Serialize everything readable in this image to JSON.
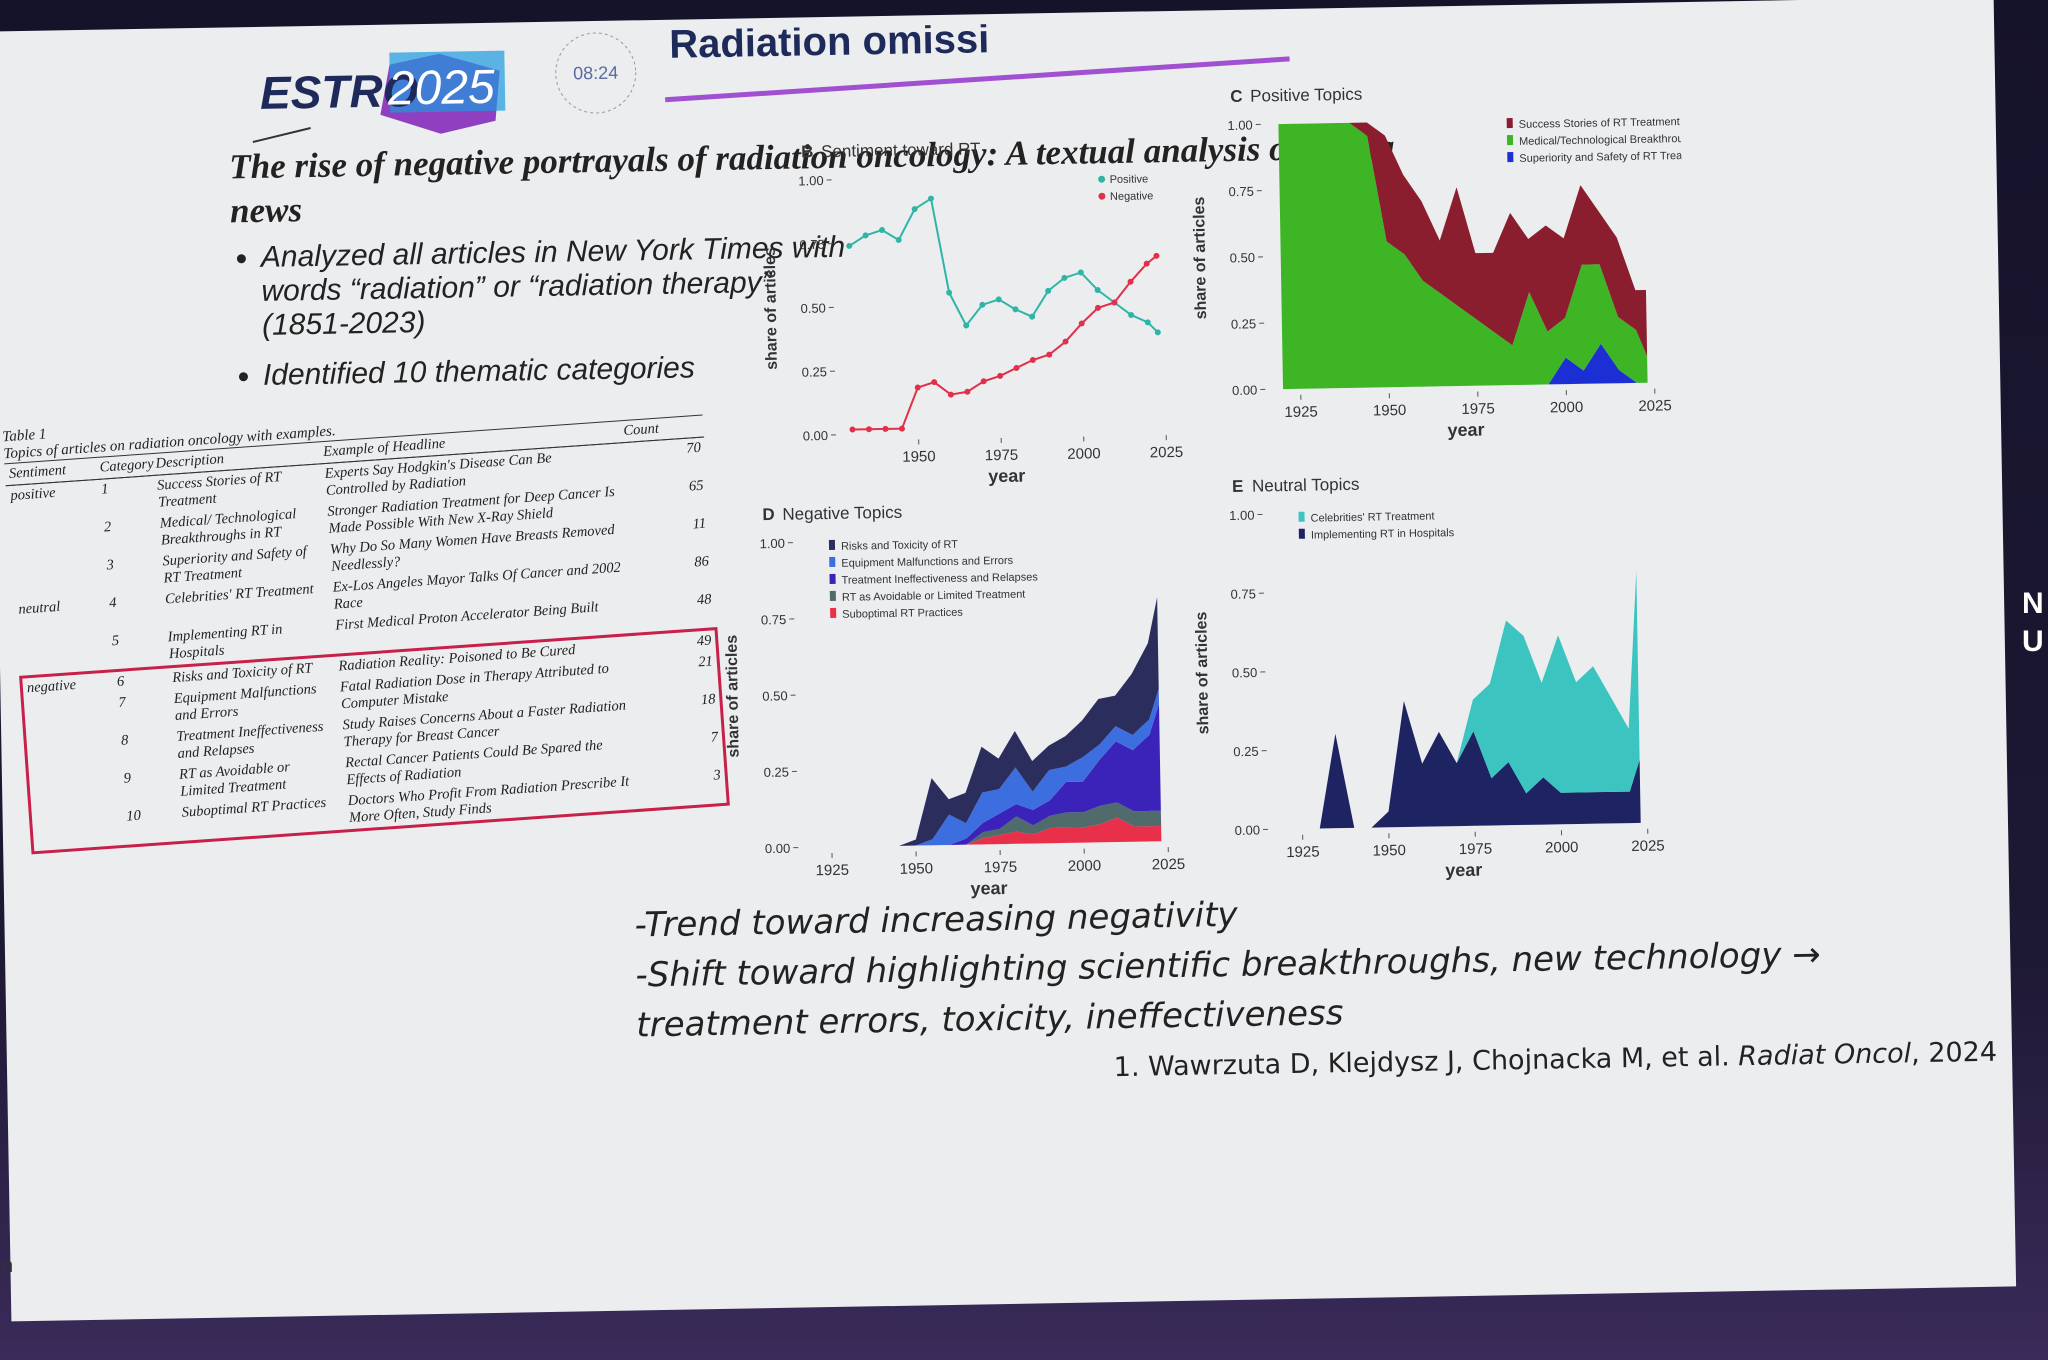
{
  "header": {
    "logo_left": "ESTRO",
    "logo_right": "2025",
    "time": "08:24",
    "title": "Radiation omissi"
  },
  "slide": {
    "title": "The rise of negative portrayals of radiation oncology: A textual analysis of media news",
    "bullets": [
      "Analyzed all articles in New York Times with words “radiation” or “radiation therapy” (1851-2023)",
      "Identified 10 thematic categories"
    ],
    "conclusions": [
      "-Trend toward increasing negativity",
      "-Shift toward highlighting scientific breakthroughs, new technology → treatment errors, toxicity, ineffectiveness"
    ]
  },
  "table": {
    "caption": "Table 1",
    "subtitle": "Topics of articles on radiation oncology with examples.",
    "headers": [
      "Sentiment",
      "Category",
      "Description",
      "Example of Headline",
      "Count"
    ],
    "rows": [
      [
        "positive",
        1,
        "Success Stories of RT Treatment",
        "Experts Say Hodgkin's Disease Can Be Controlled by Radiation",
        70
      ],
      [
        null,
        2,
        "Medical/ Technological Breakthroughs in RT",
        "Stronger Radiation Treatment for Deep Cancer Is Made Possible With New X-Ray Shield",
        65
      ],
      [
        null,
        3,
        "Superiority and Safety of RT Treatment",
        "Why Do So Many Women Have Breasts Removed Needlessly?",
        11
      ],
      [
        "neutral",
        4,
        "Celebrities' RT Treatment",
        "Ex-Los Angeles Mayor Talks Of Cancer and 2002 Race",
        86
      ],
      [
        null,
        5,
        "Implementing RT in Hospitals",
        "First Medical Proton Accelerator Being Built",
        48
      ],
      [
        "negative",
        6,
        "Risks and Toxicity of RT",
        "Radiation Reality: Poisoned to Be Cured",
        49
      ],
      [
        null,
        7,
        "Equipment Malfunctions and Errors",
        "Fatal Radiation Dose in Therapy Attributed to Computer Mistake",
        21
      ],
      [
        null,
        8,
        "Treatment Ineffectiveness and Relapses",
        "Study Raises Concerns About a Faster Radiation Therapy for Breast Cancer",
        18
      ],
      [
        null,
        9,
        "RT as Avoidable or Limited Treatment",
        "Rectal Cancer Patients Could Be Spared the Effects of Radiation",
        7
      ],
      [
        null,
        10,
        "Suboptimal RT Practices",
        "Doctors Who Profit From Radiation Prescribe It More Often, Study Finds",
        3
      ]
    ]
  },
  "citation": {
    "authors": "1. Wawrzuta D, Klejdysz J, Chojnacka M, et al. ",
    "journal": "Radiat Oncol",
    "year": ", 2024"
  },
  "edge": {
    "side": [
      "N",
      "U"
    ],
    "bottom_left": "n"
  },
  "chart_data": [
    {
      "type": "line",
      "panel": "B",
      "title": "Sentiment toward RT",
      "xlabel": "year",
      "ylabel": "share of articles",
      "legend": "upper right",
      "x": [
        1930,
        1935,
        1940,
        1945,
        1950,
        1955,
        1960,
        1965,
        1970,
        1975,
        1980,
        1985,
        1990,
        1995,
        2000,
        2005,
        2010,
        2015,
        2020,
        2023
      ],
      "xlim": [
        1925,
        2028
      ],
      "xticks": [
        1950,
        1975,
        2000,
        2025
      ],
      "ylim": [
        0,
        1
      ],
      "yticks": [
        {
          "value": 0,
          "label": "0.00"
        },
        {
          "value": 0.25,
          "label": "0.25"
        },
        {
          "value": 0.5,
          "label": "0.50"
        },
        {
          "value": 0.75,
          "label": "0.75"
        },
        {
          "value": 1,
          "label": "1.00"
        }
      ],
      "series": [
        {
          "name": "Positive",
          "color": "#2fb5a8",
          "values": [
            0.74,
            0.78,
            0.8,
            0.76,
            0.88,
            0.92,
            0.55,
            0.42,
            0.5,
            0.52,
            0.48,
            0.45,
            0.55,
            0.6,
            0.62,
            0.55,
            0.5,
            0.45,
            0.42,
            0.38
          ]
        },
        {
          "name": "Negative",
          "color": "#e0304a",
          "values": [
            0.02,
            0.02,
            0.02,
            0.02,
            0.18,
            0.2,
            0.15,
            0.16,
            0.2,
            0.22,
            0.25,
            0.28,
            0.3,
            0.35,
            0.42,
            0.48,
            0.5,
            0.58,
            0.65,
            0.68
          ]
        }
      ]
    },
    {
      "type": "area",
      "panel": "C",
      "title": "Positive Topics",
      "xlabel": "year",
      "ylabel": "share of articles",
      "legend": "upper right",
      "x": [
        1920,
        1925,
        1930,
        1935,
        1940,
        1945,
        1950,
        1955,
        1960,
        1965,
        1970,
        1975,
        1980,
        1985,
        1990,
        1995,
        2000,
        2005,
        2010,
        2015,
        2020,
        2023
      ],
      "xlim": [
        1915,
        2028
      ],
      "xticks": [
        1925,
        1950,
        1975,
        2000,
        2025
      ],
      "ylim": [
        0,
        1
      ],
      "yticks": [
        {
          "value": 0,
          "label": "0.00"
        },
        {
          "value": 0.25,
          "label": "0.25"
        },
        {
          "value": 0.5,
          "label": "0.50"
        },
        {
          "value": 0.75,
          "label": "0.75"
        },
        {
          "value": 1,
          "label": "1.00"
        }
      ],
      "series": [
        {
          "name": "Success Stories of RT Treatment",
          "color": "#8b1e2e",
          "values": [
            0,
            0,
            0,
            0,
            0,
            0.05,
            0.4,
            0.3,
            0.3,
            0.2,
            0.45,
            0.25,
            0.3,
            0.5,
            0.2,
            0.4,
            0.3,
            0.3,
            0.2,
            0.3,
            0.15,
            0.25
          ]
        },
        {
          "name": "Medical/Technological Breakthroughs in RT",
          "color": "#3db524",
          "values": [
            1,
            1,
            1,
            1,
            1,
            0.95,
            0.55,
            0.5,
            0.4,
            0.35,
            0.3,
            0.25,
            0.2,
            0.15,
            0.35,
            0.2,
            0.15,
            0.4,
            0.3,
            0.2,
            0.2,
            0.1
          ]
        },
        {
          "name": "Superiority and Safety of RT Treatment",
          "color": "#1b2fd4",
          "values": [
            0,
            0,
            0,
            0,
            0,
            0,
            0,
            0,
            0,
            0,
            0,
            0,
            0,
            0,
            0,
            0,
            0.1,
            0.05,
            0.15,
            0.05,
            0,
            0
          ]
        }
      ]
    },
    {
      "type": "area",
      "panel": "D",
      "title": "Negative Topics",
      "xlabel": "year",
      "ylabel": "share of articles",
      "legend": "upper left",
      "x": [
        1920,
        1925,
        1930,
        1935,
        1940,
        1945,
        1950,
        1955,
        1960,
        1965,
        1970,
        1975,
        1980,
        1985,
        1990,
        1995,
        2000,
        2005,
        2010,
        2015,
        2020,
        2023
      ],
      "xlim": [
        1915,
        2028
      ],
      "xticks": [
        1925,
        1950,
        1975,
        2000,
        2025
      ],
      "ylim": [
        0,
        1
      ],
      "yticks": [
        {
          "value": 0,
          "label": "0.00"
        },
        {
          "value": 0.25,
          "label": "0.25"
        },
        {
          "value": 0.5,
          "label": "0.50"
        },
        {
          "value": 0.75,
          "label": "0.75"
        },
        {
          "value": 1,
          "label": "1.00"
        }
      ],
      "series": [
        {
          "name": "Risks and Toxicity of RT",
          "color": "#2b2d5c",
          "values": [
            0,
            0,
            0,
            0,
            0,
            0,
            0.02,
            0.2,
            0.05,
            0.1,
            0.15,
            0.1,
            0.12,
            0.1,
            0.08,
            0.1,
            0.12,
            0.15,
            0.1,
            0.2,
            0.25,
            0.3
          ]
        },
        {
          "name": "Equipment Malfunctions and Errors",
          "color": "#3d6ee0",
          "values": [
            0,
            0,
            0,
            0,
            0,
            0,
            0,
            0.02,
            0.1,
            0.05,
            0.1,
            0.08,
            0.12,
            0.06,
            0.1,
            0.05,
            0.08,
            0.05,
            0.05,
            0.05,
            0.05,
            0.05
          ]
        },
        {
          "name": "Treatment Ineffectiveness and Relapses",
          "color": "#3b22b8",
          "values": [
            0,
            0,
            0,
            0,
            0,
            0,
            0,
            0,
            0,
            0.02,
            0.03,
            0.05,
            0.04,
            0.05,
            0.05,
            0.1,
            0.1,
            0.15,
            0.2,
            0.2,
            0.25,
            0.35
          ]
        },
        {
          "name": "RT as Avoidable or Limited Treatment",
          "color": "#4f6b6b",
          "values": [
            0,
            0,
            0,
            0,
            0,
            0,
            0,
            0,
            0,
            0,
            0.02,
            0.02,
            0.05,
            0.03,
            0.04,
            0.05,
            0.05,
            0.06,
            0.05,
            0.05,
            0.05,
            0.05
          ]
        },
        {
          "name": "Suboptimal RT Practices",
          "color": "#e8304a",
          "values": [
            0,
            0,
            0,
            0,
            0,
            0,
            0,
            0,
            0,
            0,
            0.02,
            0.03,
            0.04,
            0.03,
            0.05,
            0.05,
            0.05,
            0.06,
            0.08,
            0.05,
            0.05,
            0.05
          ]
        }
      ]
    },
    {
      "type": "area",
      "panel": "E",
      "title": "Neutral Topics",
      "xlabel": "year",
      "ylabel": "share of articles",
      "legend": "upper left",
      "x": [
        1920,
        1925,
        1930,
        1935,
        1940,
        1945,
        1950,
        1955,
        1960,
        1965,
        1970,
        1975,
        1980,
        1985,
        1990,
        1995,
        2000,
        2005,
        2010,
        2015,
        2020,
        2023
      ],
      "xlim": [
        1915,
        2028
      ],
      "xticks": [
        1925,
        1950,
        1975,
        2000,
        2025
      ],
      "ylim": [
        0,
        1
      ],
      "yticks": [
        {
          "value": 0,
          "label": "0.00"
        },
        {
          "value": 0.25,
          "label": "0.25"
        },
        {
          "value": 0.5,
          "label": "0.50"
        },
        {
          "value": 0.75,
          "label": "0.75"
        },
        {
          "value": 1,
          "label": "1.00"
        }
      ],
      "series": [
        {
          "name": "Celebrities' RT Treatment",
          "color": "#3cc4c0",
          "values": [
            0,
            0,
            0,
            0,
            0,
            0,
            0,
            0,
            0,
            0,
            0,
            0.1,
            0.3,
            0.45,
            0.5,
            0.3,
            0.5,
            0.35,
            0.4,
            0.3,
            0.2,
            0.6
          ]
        },
        {
          "name": "Implementing RT in Hospitals",
          "color": "#1e2462",
          "values": [
            0,
            0,
            0,
            0.3,
            0,
            0,
            0.05,
            0.4,
            0.2,
            0.3,
            0.2,
            0.3,
            0.15,
            0.2,
            0.1,
            0.15,
            0.1,
            0.1,
            0.1,
            0.1,
            0.1,
            0.2
          ]
        }
      ]
    }
  ]
}
